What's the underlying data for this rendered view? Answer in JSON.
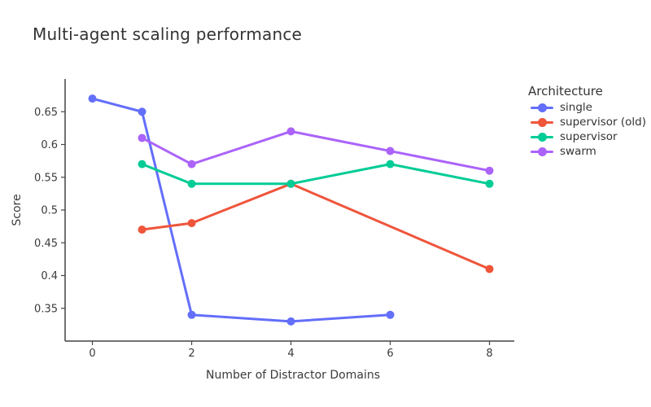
{
  "title": "Multi-agent scaling performance",
  "chart_data": {
    "type": "line",
    "title": "Multi-agent scaling performance",
    "xlabel": "Number of Distractor Domains",
    "ylabel": "Score",
    "xlim": [
      -0.55,
      8.5
    ],
    "ylim": [
      0.3,
      0.7
    ],
    "xticks": [
      0,
      2,
      4,
      6,
      8
    ],
    "yticks": [
      0.35,
      0.4,
      0.45,
      0.5,
      0.55,
      0.6,
      0.65
    ],
    "grid": false,
    "background": "#ffffff",
    "axis_color": "#444444",
    "text_color": "#3b3b3b",
    "legend": {
      "title": "Architecture",
      "position": "right"
    },
    "series": [
      {
        "name": "single",
        "color": "#636EFA",
        "x": [
          0,
          1,
          2,
          4,
          6
        ],
        "y": [
          0.67,
          0.65,
          0.34,
          0.33,
          0.34
        ]
      },
      {
        "name": "supervisor (old)",
        "color": "#EF553B",
        "x": [
          1,
          2,
          4,
          8
        ],
        "y": [
          0.47,
          0.48,
          0.54,
          0.41
        ]
      },
      {
        "name": "supervisor",
        "color": "#00CC96",
        "x": [
          1,
          2,
          4,
          6,
          8
        ],
        "y": [
          0.57,
          0.54,
          0.54,
          0.57,
          0.54
        ]
      },
      {
        "name": "swarm",
        "color": "#AB63FA",
        "x": [
          1,
          2,
          4,
          6,
          8
        ],
        "y": [
          0.61,
          0.57,
          0.62,
          0.59,
          0.56
        ]
      }
    ]
  }
}
